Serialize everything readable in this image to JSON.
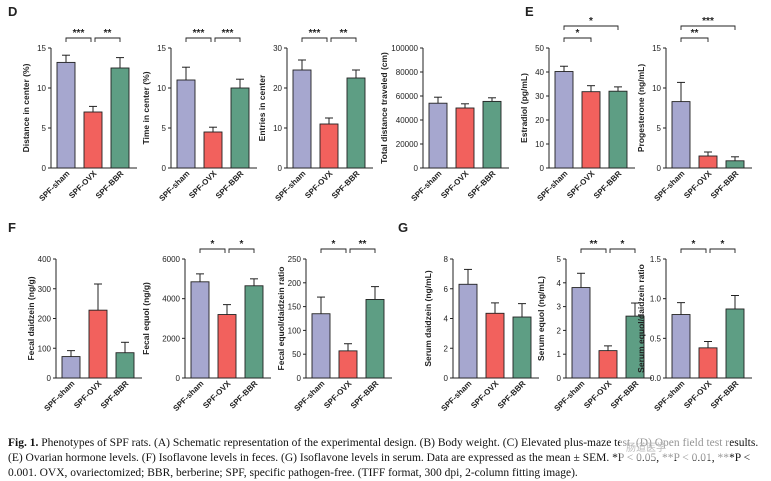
{
  "colors": {
    "sham": "#a6a7cf",
    "ovx": "#f2615d",
    "bbr": "#5e9e84",
    "ink": "#222222"
  },
  "chart_data": [
    {
      "panel_letter": "D",
      "type": "bar",
      "ylabel": "Distance in center (%)",
      "ylim": [
        0,
        15
      ],
      "yticks": [
        "0",
        "5",
        "10",
        "15"
      ],
      "categories": [
        "SPF-sham",
        "SPF-OVX",
        "SPF-BBR"
      ],
      "values": [
        13.2,
        7.0,
        12.5
      ],
      "errors": [
        0.9,
        0.7,
        1.3
      ],
      "sig": [
        {
          "from": 0,
          "to": 1,
          "label": "***"
        },
        {
          "from": 1,
          "to": 2,
          "label": "**"
        }
      ]
    },
    {
      "type": "bar",
      "ylabel": "Time in center (%)",
      "ylim": [
        0,
        15
      ],
      "yticks": [
        "0",
        "5",
        "10",
        "15"
      ],
      "categories": [
        "SPF-sham",
        "SPF-OVX",
        "SPF-BBR"
      ],
      "values": [
        11.0,
        4.5,
        10.0
      ],
      "errors": [
        1.6,
        0.6,
        1.1
      ],
      "sig": [
        {
          "from": 0,
          "to": 1,
          "label": "***"
        },
        {
          "from": 1,
          "to": 2,
          "label": "***"
        }
      ]
    },
    {
      "type": "bar",
      "ylabel": "Entries in center",
      "ylim": [
        0,
        30
      ],
      "yticks": [
        "0",
        "10",
        "20",
        "30"
      ],
      "categories": [
        "SPF-sham",
        "SPF-OVX",
        "SPF-BBR"
      ],
      "values": [
        24.5,
        11.0,
        22.5
      ],
      "errors": [
        2.5,
        1.5,
        2.0
      ],
      "sig": [
        {
          "from": 0,
          "to": 1,
          "label": "***"
        },
        {
          "from": 1,
          "to": 2,
          "label": "**"
        }
      ]
    },
    {
      "type": "bar",
      "ylabel": "Total distance traveled (cm)",
      "ylim": [
        0,
        100000
      ],
      "yticks": [
        "0",
        "20000",
        "40000",
        "60000",
        "80000",
        "100000"
      ],
      "categories": [
        "SPF-sham",
        "SPF-OVX",
        "SPF-BBR"
      ],
      "values": [
        54000,
        50000,
        55500
      ],
      "errors": [
        5000,
        3500,
        3000
      ],
      "sig": []
    },
    {
      "panel_letter": "E",
      "type": "bar",
      "ylabel": "Estradiol (pg/mL)",
      "ylim": [
        0,
        50
      ],
      "yticks": [
        "0",
        "10",
        "20",
        "30",
        "40",
        "50"
      ],
      "categories": [
        "SPF-sham",
        "SPF-OVX",
        "SPF-BBR"
      ],
      "values": [
        40.2,
        31.8,
        32.0
      ],
      "errors": [
        2.2,
        2.5,
        1.8
      ],
      "sig": [
        {
          "from": 0,
          "to": 1,
          "label": "*"
        },
        {
          "from": 0,
          "to": 2,
          "label": "*"
        }
      ]
    },
    {
      "type": "bar",
      "ylabel": "Progesterone (ng/mL)",
      "ylim": [
        0,
        15
      ],
      "yticks": [
        "0",
        "5",
        "10",
        "15"
      ],
      "categories": [
        "SPF-sham",
        "SPF-OVX",
        "SPF-BBR"
      ],
      "values": [
        8.3,
        1.5,
        0.9
      ],
      "errors": [
        2.4,
        0.5,
        0.5
      ],
      "sig": [
        {
          "from": 0,
          "to": 1,
          "label": "**"
        },
        {
          "from": 0,
          "to": 2,
          "label": "***"
        }
      ]
    },
    {
      "panel_letter": "F",
      "type": "bar",
      "ylabel": "Fecal daidzein (ng/g)",
      "ylim": [
        0,
        400
      ],
      "yticks": [
        "0",
        "100",
        "200",
        "300",
        "400"
      ],
      "categories": [
        "SPF-sham",
        "SPF-OVX",
        "SPF-BBR"
      ],
      "values": [
        72,
        228,
        85
      ],
      "errors": [
        20,
        88,
        35
      ],
      "sig": []
    },
    {
      "type": "bar",
      "ylabel": "Fecal equol (ng/g)",
      "ylim": [
        0,
        6000
      ],
      "yticks": [
        "0",
        "2000",
        "4000",
        "6000"
      ],
      "categories": [
        "SPF-sham",
        "SPF-OVX",
        "SPF-BBR"
      ],
      "values": [
        4850,
        3200,
        4650
      ],
      "errors": [
        400,
        500,
        350
      ],
      "sig": [
        {
          "from": 0,
          "to": 1,
          "label": "*"
        },
        {
          "from": 1,
          "to": 2,
          "label": "*"
        }
      ]
    },
    {
      "type": "bar",
      "ylabel": "Fecal equol/daidzein ratio",
      "ylim": [
        0,
        250
      ],
      "yticks": [
        "0",
        "50",
        "100",
        "150",
        "200",
        "250"
      ],
      "categories": [
        "SPF-sham",
        "SPF-OVX",
        "SPF-BBR"
      ],
      "values": [
        135,
        57,
        165
      ],
      "errors": [
        35,
        15,
        27
      ],
      "sig": [
        {
          "from": 0,
          "to": 1,
          "label": "*"
        },
        {
          "from": 1,
          "to": 2,
          "label": "**"
        }
      ]
    },
    {
      "panel_letter": "G",
      "type": "bar",
      "ylabel": "Serum daidzein (ng/mL)",
      "ylim": [
        0,
        8
      ],
      "yticks": [
        "0",
        "2",
        "4",
        "6",
        "8"
      ],
      "categories": [
        "SPF-sham",
        "SPF-OVX",
        "SPF-BBR"
      ],
      "values": [
        6.3,
        4.35,
        4.1
      ],
      "errors": [
        1.0,
        0.7,
        0.9
      ],
      "sig": []
    },
    {
      "type": "bar",
      "ylabel": "Serum equol (ng/mL)",
      "ylim": [
        0,
        5
      ],
      "yticks": [
        "0",
        "1",
        "2",
        "3",
        "4",
        "5"
      ],
      "categories": [
        "SPF-sham",
        "SPF-OVX",
        "SPF-BBR"
      ],
      "values": [
        3.8,
        1.15,
        2.6
      ],
      "errors": [
        0.6,
        0.2,
        0.55
      ],
      "sig": [
        {
          "from": 0,
          "to": 1,
          "label": "**"
        },
        {
          "from": 1,
          "to": 2,
          "label": "*"
        }
      ]
    },
    {
      "type": "bar",
      "ylabel": "Serum equol/daidzein ratio",
      "ylim": [
        0,
        1.5
      ],
      "yticks": [
        "0.0",
        "0.5",
        "1.0",
        "1.5"
      ],
      "categories": [
        "SPF-sham",
        "SPF-OVX",
        "SPF-BBR"
      ],
      "values": [
        0.8,
        0.38,
        0.87
      ],
      "errors": [
        0.15,
        0.08,
        0.17
      ],
      "sig": [
        {
          "from": 0,
          "to": 1,
          "label": "*"
        },
        {
          "from": 1,
          "to": 2,
          "label": "*"
        }
      ]
    }
  ],
  "caption": {
    "label": "Fig. 1.",
    "text": "Phenotypes of SPF rats. (A) Schematic representation of the experimental design. (B) Body weight. (C) Elevated plus-maze test. (D) Open field test results. (E) Ovarian hormone levels. (F) Isoflavone levels in feces. (G) Isoflavone levels in serum. Data are expressed as the mean ± SEM. *P < 0.05, **P < 0.01, ***P < 0.001. OVX, ovariectomized; BBR, berberine; SPF, specific pathogen-free. (TIFF format, 300 dpi, 2-column fitting image)."
  },
  "watermark": "肠道医学"
}
